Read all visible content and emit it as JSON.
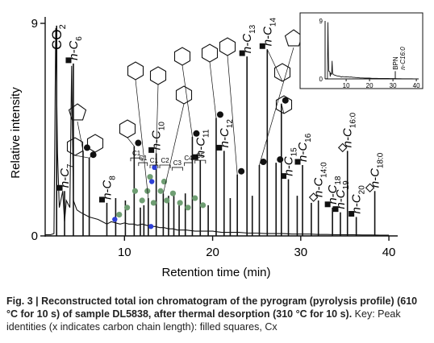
{
  "chart_data": {
    "type": "line",
    "title": "",
    "xlabel": "Retention time (min)",
    "ylabel": "Relative intensity",
    "xlim": [
      1,
      41
    ],
    "ylim": [
      0,
      9
    ],
    "x_ticks": [
      10,
      20,
      30,
      40
    ],
    "y_ticks": [
      0,
      9
    ],
    "trace": {
      "x": [
        1.0,
        1.6,
        2.0,
        2.2,
        2.4,
        2.6,
        3.0,
        3.2,
        3.4,
        3.8,
        4.0,
        4.2,
        4.6,
        5.0,
        5.5,
        6.0,
        6.5,
        7.0,
        7.5,
        8.0,
        8.5,
        9.0,
        9.5,
        10.0,
        10.5,
        11.0,
        11.5,
        12.0,
        12.5,
        13.0,
        13.5,
        14.0,
        14.5,
        15.0,
        15.5,
        16.0,
        17.0,
        18.0,
        19.0,
        20.0,
        21.0,
        22.0,
        23.0,
        24.0,
        25.0,
        26.0,
        27.0,
        28.0,
        29.0,
        30.0,
        31.0,
        32.0,
        33.0,
        34.0,
        35.0,
        36.0,
        37.0,
        38.0,
        39.0,
        40.0
      ],
      "y": [
        0.05,
        0.05,
        0.1,
        8.8,
        3.5,
        1.2,
        1.9,
        0.6,
        1.5,
        1.2,
        7.2,
        1.5,
        1.1,
        1.0,
        0.9,
        0.8,
        0.75,
        0.7,
        0.6,
        0.5,
        0.6,
        0.55,
        0.5,
        0.55,
        0.5,
        0.5,
        0.45,
        0.5,
        0.45,
        0.4,
        0.4,
        0.35,
        0.35,
        0.3,
        0.3,
        0.25,
        0.25,
        0.2,
        0.2,
        0.2,
        0.15,
        0.15,
        0.15,
        0.12,
        0.12,
        0.1,
        0.1,
        0.1,
        0.08,
        0.08,
        0.08,
        0.06,
        0.06,
        0.05,
        0.05,
        0.05,
        0.04,
        0.04,
        0.03,
        0.03
      ]
    },
    "peaks": [
      {
        "x": 2.3,
        "y": 8.9,
        "label": "CO2"
      },
      {
        "x": 4.2,
        "y": 7.3,
        "label": "n-C6"
      },
      {
        "x": 5.3,
        "y": 3.6
      },
      {
        "x": 6.0,
        "y": 3.3
      },
      {
        "x": 3.2,
        "y": 1.9,
        "label": "n-C7"
      },
      {
        "x": 8.0,
        "y": 1.4,
        "label": "n-C8"
      },
      {
        "x": 9.0,
        "y": 1.6
      },
      {
        "x": 10.1,
        "y": 1.5
      },
      {
        "x": 11.1,
        "y": 3.8
      },
      {
        "x": 11.8,
        "y": 1.2
      },
      {
        "x": 12.2,
        "y": 1.3
      },
      {
        "x": 12.7,
        "y": 1.6
      },
      {
        "x": 13.6,
        "y": 3.5,
        "label": "n-C10"
      },
      {
        "x": 14.4,
        "y": 1.8
      },
      {
        "x": 15.0,
        "y": 1.7
      },
      {
        "x": 15.6,
        "y": 1.9
      },
      {
        "x": 16.2,
        "y": 1.5
      },
      {
        "x": 16.9,
        "y": 1.8
      },
      {
        "x": 17.7,
        "y": 4.2
      },
      {
        "x": 18.6,
        "y": 3.2,
        "label": "n-C11"
      },
      {
        "x": 19.5,
        "y": 1.3
      },
      {
        "x": 20.4,
        "y": 5.0
      },
      {
        "x": 21.3,
        "y": 3.6,
        "label": "n-C12"
      },
      {
        "x": 22.0,
        "y": 1.6
      },
      {
        "x": 22.8,
        "y": 2.6
      },
      {
        "x": 23.9,
        "y": 7.6,
        "label": "n-C13"
      },
      {
        "x": 24.5,
        "y": 1.7
      },
      {
        "x": 25.3,
        "y": 3.0
      },
      {
        "x": 26.2,
        "y": 7.9,
        "label": "n-C14"
      },
      {
        "x": 27.2,
        "y": 3.1
      },
      {
        "x": 27.8,
        "y": 5.6
      },
      {
        "x": 28.6,
        "y": 2.4,
        "label": "n-C15"
      },
      {
        "x": 29.6,
        "y": 1.7
      },
      {
        "x": 30.2,
        "y": 3.0,
        "label": "n-C16"
      },
      {
        "x": 31.2,
        "y": 1.4
      },
      {
        "x": 32.0,
        "y": 1.5,
        "label": "n-C14:0"
      },
      {
        "x": 33.6,
        "y": 1.2,
        "label": "n-C18"
      },
      {
        "x": 34.5,
        "y": 1.0,
        "label": "n-C19"
      },
      {
        "x": 35.3,
        "y": 3.6,
        "label": "n-C16:0"
      },
      {
        "x": 36.3,
        "y": 0.8,
        "label": "n-C20"
      },
      {
        "x": 38.4,
        "y": 1.9,
        "label": "n-C18:0"
      }
    ],
    "bracket_labels": [
      "C1",
      "C1",
      "C1",
      "C2",
      "C3",
      "C4",
      "C5"
    ],
    "inset": {
      "x_ticks": [
        10,
        20,
        30,
        40
      ],
      "y_ticks": [
        0,
        9
      ],
      "labels": [
        "BPN",
        "n-C16:0"
      ]
    },
    "colors": {
      "ink": "#111111",
      "green_markers": "#6f9e73",
      "blue_markers": "#2d3fd6"
    }
  },
  "caption": {
    "lead": "Fig. 3 | Reconstructed total ion chromatogram of the pyrogram (pyrolysis profile) (610 °C for 10 s) of sample DL5838, after thermal desorption (310 °C for 10 s).",
    "rest": " Key: Peak identities (x indicates carbon chain length): filled squares, Cx"
  }
}
